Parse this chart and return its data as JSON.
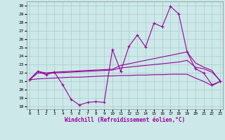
{
  "bg_color": "#cce8e8",
  "grid_color": "#aacccc",
  "line_color": "#990099",
  "xlabel": "Windchill (Refroidissement éolien,°C)",
  "x_ticks": [
    0,
    1,
    2,
    3,
    4,
    5,
    6,
    7,
    8,
    9,
    10,
    11,
    12,
    13,
    14,
    15,
    16,
    17,
    18,
    19,
    20,
    21,
    22,
    23
  ],
  "yticks": [
    18,
    19,
    20,
    21,
    22,
    23,
    24,
    25,
    26,
    27,
    28,
    29,
    30
  ],
  "ylim_min": 17.7,
  "ylim_max": 30.5,
  "xlim_min": -0.3,
  "xlim_max": 23.3,
  "series_main": [
    21.2,
    22.2,
    21.8,
    22.1,
    20.6,
    18.9,
    18.2,
    18.5,
    18.6,
    18.5,
    24.8,
    22.2,
    25.2,
    26.5,
    25.1,
    27.9,
    27.5,
    29.9,
    29.0,
    24.5,
    22.5,
    22.0,
    20.6,
    21.0
  ],
  "series_upper": [
    21.2,
    22.2,
    22.0,
    22.1,
    22.15,
    22.2,
    22.25,
    22.3,
    22.35,
    22.4,
    22.45,
    22.9,
    23.1,
    23.3,
    23.5,
    23.7,
    23.9,
    24.1,
    24.3,
    24.5,
    23.2,
    22.7,
    22.3,
    21.0
  ],
  "series_mid": [
    21.2,
    22.0,
    21.95,
    22.0,
    22.05,
    22.1,
    22.15,
    22.2,
    22.25,
    22.3,
    22.35,
    22.6,
    22.7,
    22.8,
    22.9,
    23.0,
    23.1,
    23.2,
    23.3,
    23.5,
    22.7,
    22.5,
    22.1,
    21.1
  ],
  "series_lower": [
    21.2,
    21.3,
    21.35,
    21.4,
    21.45,
    21.5,
    21.5,
    21.55,
    21.6,
    21.65,
    21.65,
    21.7,
    21.7,
    21.75,
    21.75,
    21.8,
    21.8,
    21.85,
    21.85,
    21.85,
    21.4,
    21.0,
    20.5,
    21.0
  ]
}
